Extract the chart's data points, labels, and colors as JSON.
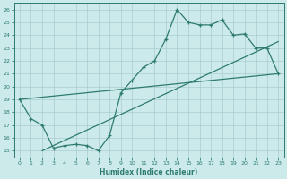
{
  "xlabel": "Humidex (Indice chaleur)",
  "bg_color": "#cceaea",
  "grid_color": "#aacccc",
  "line_color": "#2e7c6e",
  "xlim": [
    -0.5,
    23.5
  ],
  "ylim": [
    14.5,
    26.5
  ],
  "xticks": [
    0,
    1,
    2,
    3,
    4,
    5,
    6,
    7,
    8,
    9,
    10,
    11,
    12,
    13,
    14,
    15,
    16,
    17,
    18,
    19,
    20,
    21,
    22,
    23
  ],
  "yticks": [
    15,
    16,
    17,
    18,
    19,
    20,
    21,
    22,
    23,
    24,
    25,
    26
  ],
  "line1_x": [
    0,
    1,
    2,
    3,
    4,
    5,
    6,
    7,
    8,
    9,
    10,
    11,
    12,
    13,
    14,
    15,
    16,
    17,
    18,
    19,
    20,
    21,
    22,
    23
  ],
  "line1_y": [
    19,
    17.5,
    17,
    15.2,
    15.4,
    15.5,
    15.4,
    15.0,
    16.2,
    19.5,
    20.5,
    21.5,
    22.0,
    23.7,
    26.0,
    25.0,
    24.8,
    24.8,
    25.2,
    24.0,
    24.1,
    23.0,
    23.0,
    21.0
  ],
  "line2_x": [
    0,
    23
  ],
  "line2_y": [
    19.0,
    21.0
  ],
  "line3_x": [
    2,
    23
  ],
  "line3_y": [
    15.0,
    23.5
  ]
}
